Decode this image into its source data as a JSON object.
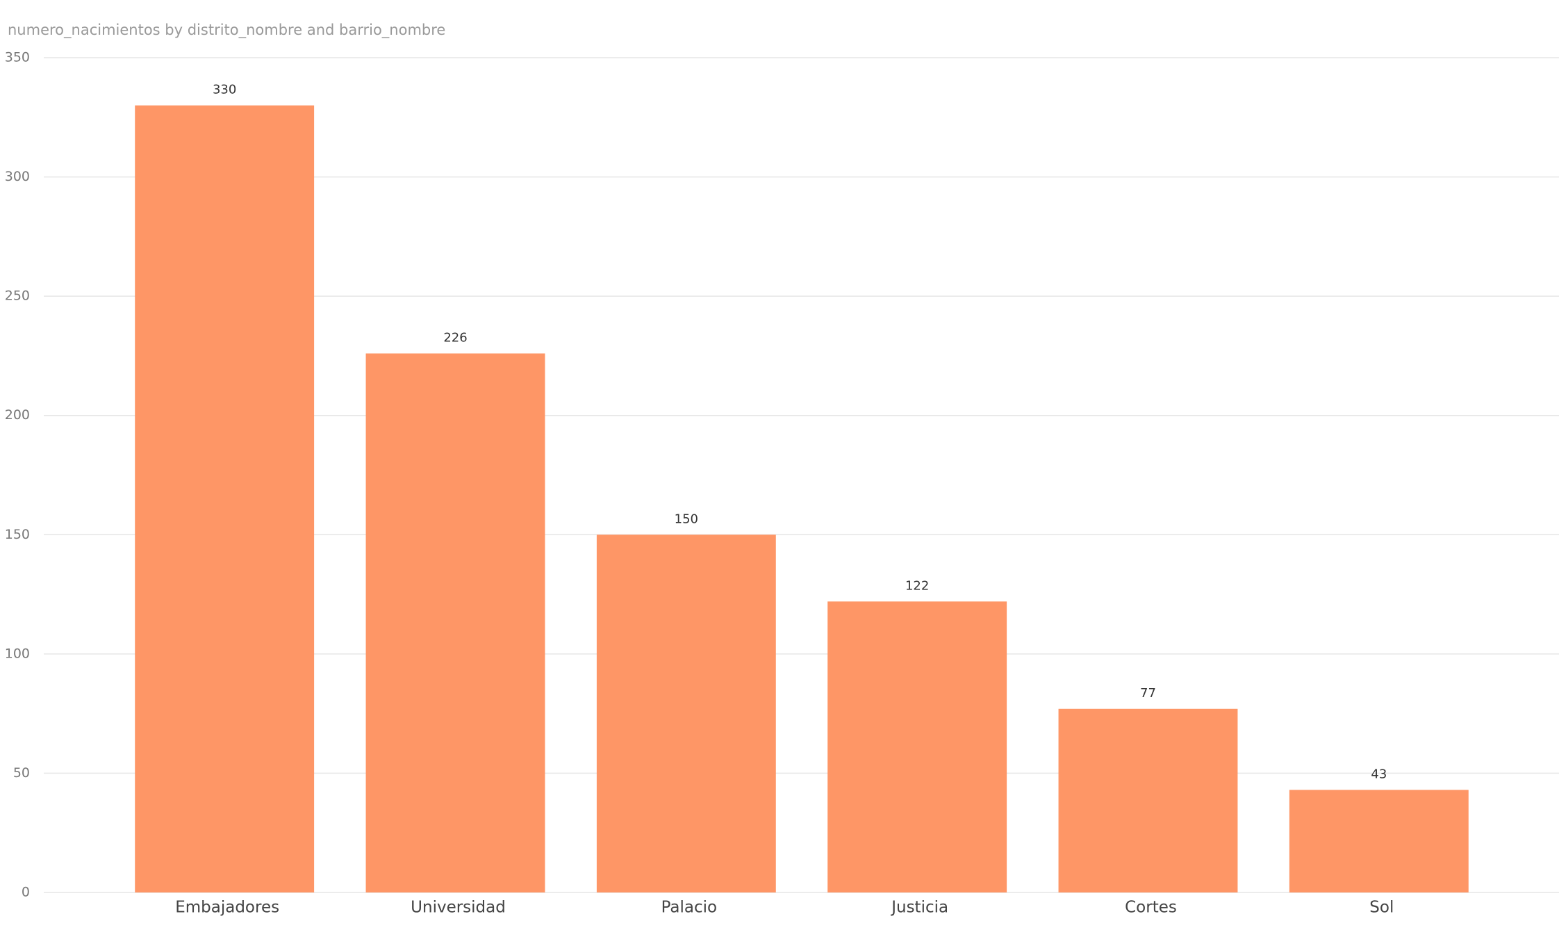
{
  "chart_data": {
    "type": "bar",
    "title": "numero_nacimientos by distrito_nombre and barrio_nombre",
    "categories": [
      "Embajadores",
      "Universidad",
      "Palacio",
      "Justicia",
      "Cortes",
      "Sol"
    ],
    "values": [
      330,
      226,
      150,
      122,
      77,
      43
    ],
    "color": "#fe9666",
    "ylim": [
      0,
      350
    ],
    "yticks": [
      0,
      50,
      100,
      150,
      200,
      250,
      300,
      350
    ],
    "grid": true
  }
}
